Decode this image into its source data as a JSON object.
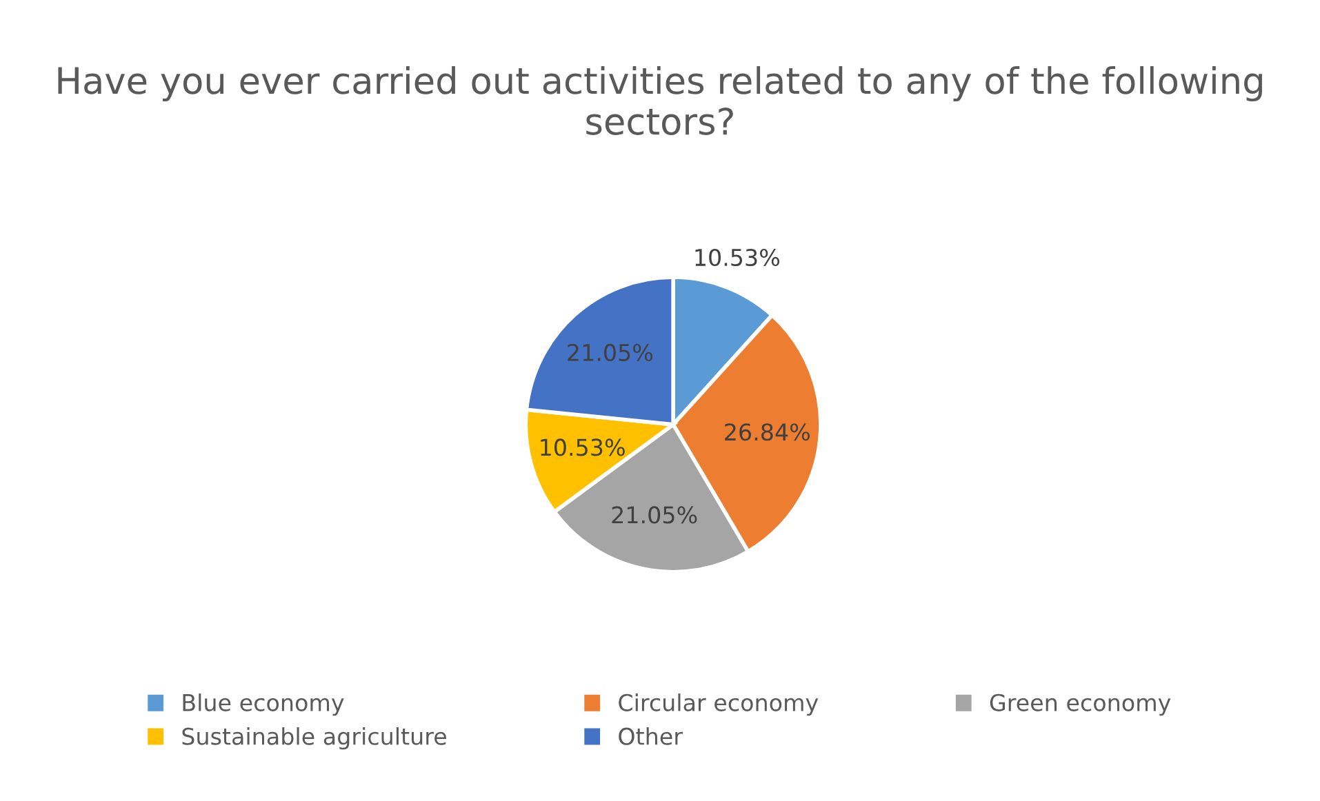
{
  "chart_data": {
    "type": "pie",
    "title": "Have you ever carried out activities related to any of the following sectors?",
    "categories": [
      "Blue economy",
      "Circular economy",
      "Green economy",
      "Sustainable agriculture",
      "Other"
    ],
    "values": [
      10.53,
      26.84,
      21.05,
      10.53,
      21.05
    ],
    "colors": [
      "#5b9bd5",
      "#ed7d31",
      "#a5a5a5",
      "#ffc000",
      "#4472c4"
    ],
    "value_labels": [
      "10.53%",
      "26.84%",
      "21.05%",
      "10.53%",
      "21.05%"
    ],
    "legend": "bottom"
  }
}
